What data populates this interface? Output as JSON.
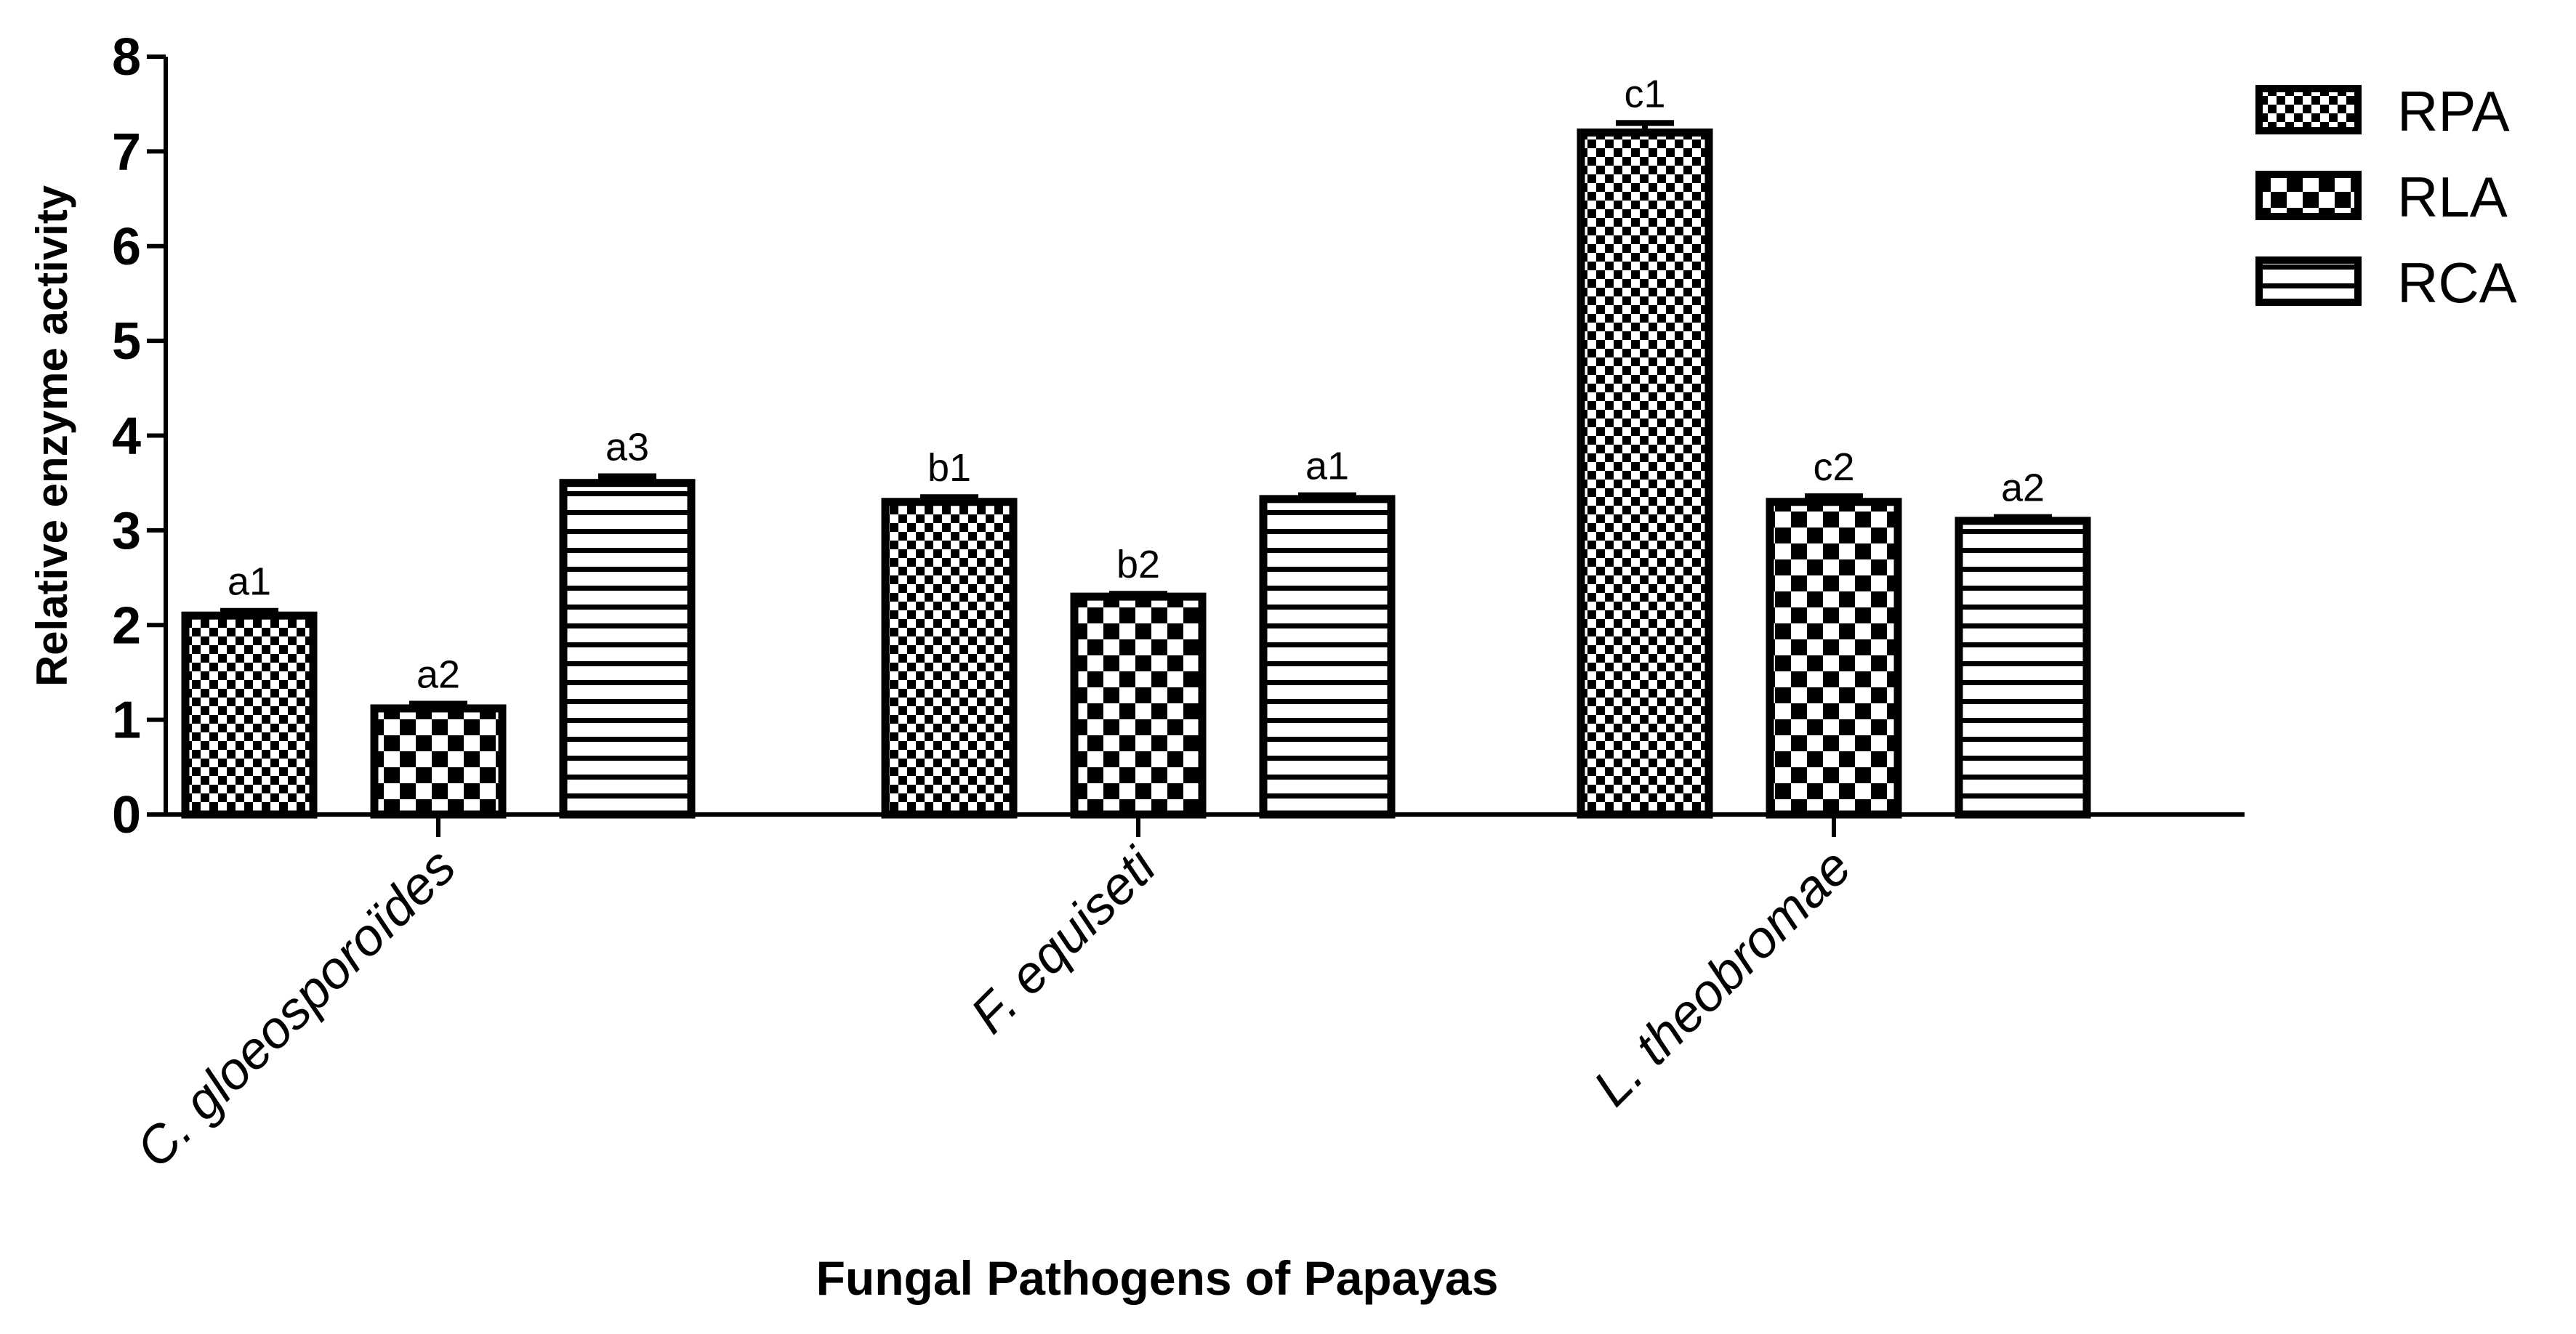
{
  "chart_data": {
    "type": "bar",
    "title": "",
    "xlabel": "Fungal Pathogens of Papayas",
    "ylabel": "Relative enzyme activity",
    "ylim": [
      0,
      8
    ],
    "yticks": [
      "0",
      "1",
      "2",
      "3",
      "4",
      "5",
      "6",
      "7",
      "8"
    ],
    "grid": false,
    "legend_position": "top-right",
    "categories": [
      "C. gloeosporoïdes",
      "F. equiseti",
      "L. theobromae"
    ],
    "series": [
      {
        "name": "RPA",
        "pattern": "fine-checker",
        "values": [
          2.1,
          3.3,
          7.2
        ],
        "errors": [
          0.05,
          0.05,
          0.1
        ],
        "labels": [
          "a1",
          "b1",
          "c1"
        ]
      },
      {
        "name": "RLA",
        "pattern": "coarse-checker",
        "values": [
          1.12,
          2.3,
          3.3
        ],
        "errors": [
          0.05,
          0.03,
          0.06
        ],
        "labels": [
          "a2",
          "b2",
          "c2"
        ]
      },
      {
        "name": "RCA",
        "pattern": "horizontal-stripes",
        "values": [
          3.5,
          3.33,
          3.1
        ],
        "errors": [
          0.07,
          0.04,
          0.04
        ],
        "labels": [
          "a3",
          "a1",
          "a2"
        ]
      }
    ]
  }
}
